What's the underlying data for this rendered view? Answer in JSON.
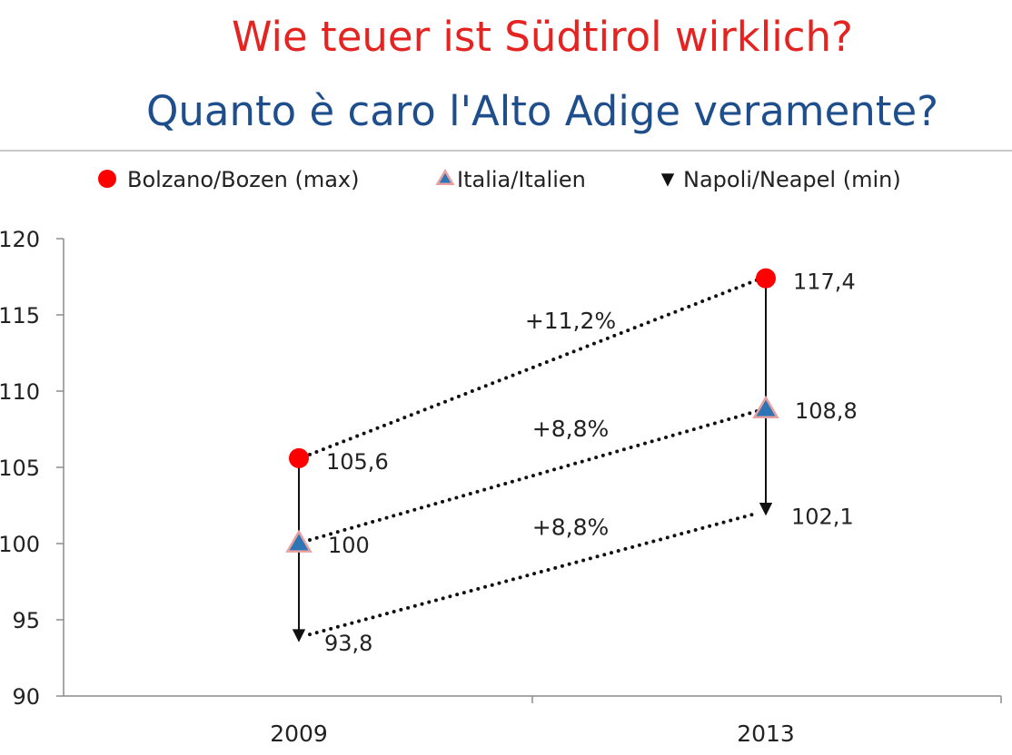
{
  "header": {
    "title_de": "Wie teuer ist Südtirol wirklich?",
    "title_it": "Quanto è caro l'Alto Adige veramente?"
  },
  "chart_data": {
    "type": "scatter",
    "categories": [
      "2009",
      "2013"
    ],
    "ylim": [
      90,
      120
    ],
    "yticks": [
      120,
      115,
      110,
      105,
      100,
      95,
      90
    ],
    "grid": false,
    "legend_position": "top",
    "series": [
      {
        "name": "Bolzano/Bozen (max)",
        "marker": "circle",
        "color": "#ff0000",
        "values": [
          105.6,
          117.4
        ],
        "labels": [
          "105,6",
          "117,4"
        ]
      },
      {
        "name": "Italia/Italien",
        "marker": "triangle-up",
        "color": "#2e75b6",
        "values": [
          100,
          108.8
        ],
        "labels": [
          "100",
          "108,8"
        ]
      },
      {
        "name": "Napoli/Neapel (min)",
        "marker": "triangle-down",
        "color": "#111111",
        "values": [
          93.8,
          102.1
        ],
        "labels": [
          "93,8",
          "102,1"
        ]
      }
    ],
    "annotations": [
      {
        "text": "+11,2%",
        "series": 0
      },
      {
        "text": "+8,8%",
        "series": 1
      },
      {
        "text": "+8,8%",
        "series": 2
      }
    ]
  }
}
